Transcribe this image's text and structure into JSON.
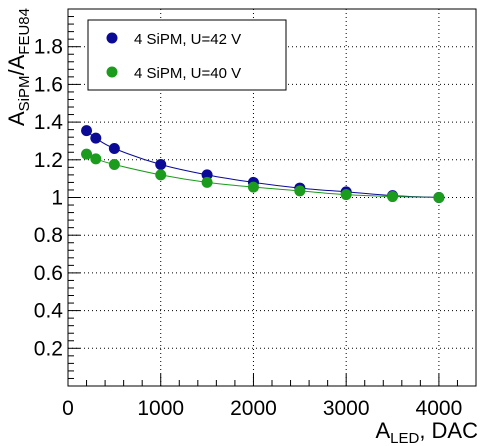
{
  "chart_data": {
    "type": "scatter",
    "title": "",
    "xlabel": {
      "main": "A",
      "sub": "LED",
      "suffix": ", DAC"
    },
    "ylabel": {
      "main1": "A",
      "sub1": "SiPM",
      "mid": "/A",
      "sub2": "FEU84"
    },
    "xlim": [
      0,
      4400
    ],
    "ylim": [
      0,
      2.0
    ],
    "xticks": [
      0,
      1000,
      2000,
      3000,
      4000
    ],
    "xtick_labels": [
      "0",
      "1000",
      "2000",
      "3000",
      "4000"
    ],
    "yticks": [
      0.2,
      0.4,
      0.6,
      0.8,
      1,
      1.2,
      1.4,
      1.6,
      1.8
    ],
    "ytick_labels": [
      "0.2",
      "0.4",
      "0.6",
      "0.8",
      "1",
      "1.2",
      "1.4",
      "1.6",
      "1.8"
    ],
    "grid": true,
    "legend_position": "top-left",
    "series": [
      {
        "name": "4 SiPM, U=42 V",
        "color": "#0a0a96",
        "x": [
          200,
          300,
          500,
          1000,
          1500,
          2000,
          2500,
          3000,
          3500,
          4000
        ],
        "y": [
          1.355,
          1.315,
          1.26,
          1.175,
          1.12,
          1.08,
          1.05,
          1.03,
          1.01,
          1.0
        ]
      },
      {
        "name": "4 SiPM, U=40 V",
        "color": "#1c9c1c",
        "x": [
          200,
          300,
          500,
          1000,
          1500,
          2000,
          2500,
          3000,
          3500,
          4000
        ],
        "y": [
          1.23,
          1.205,
          1.175,
          1.12,
          1.08,
          1.055,
          1.035,
          1.015,
          1.005,
          1.0
        ]
      }
    ]
  }
}
